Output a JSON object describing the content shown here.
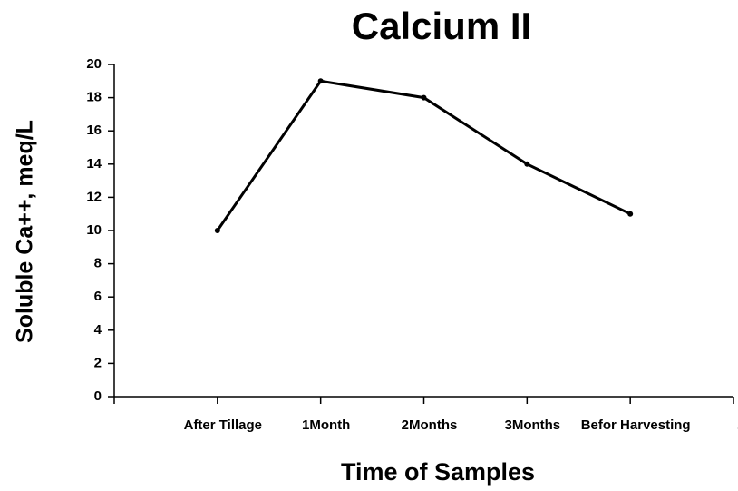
{
  "chart_data": {
    "type": "line",
    "title": "Calcium II",
    "x_label": "Time of Samples",
    "y_label": "Soluble Ca++, meq/L",
    "categories": [
      null,
      "After Tillage",
      "1Month",
      "2Months",
      "3Months",
      "Befor Harvesting",
      "."
    ],
    "values": [
      null,
      10,
      19,
      18,
      14,
      11,
      null
    ],
    "color": "#000000",
    "ylim": [
      0,
      20
    ],
    "yticks": [
      0,
      2,
      4,
      6,
      8,
      10,
      12,
      14,
      16,
      18,
      20
    ],
    "grid": false
  }
}
